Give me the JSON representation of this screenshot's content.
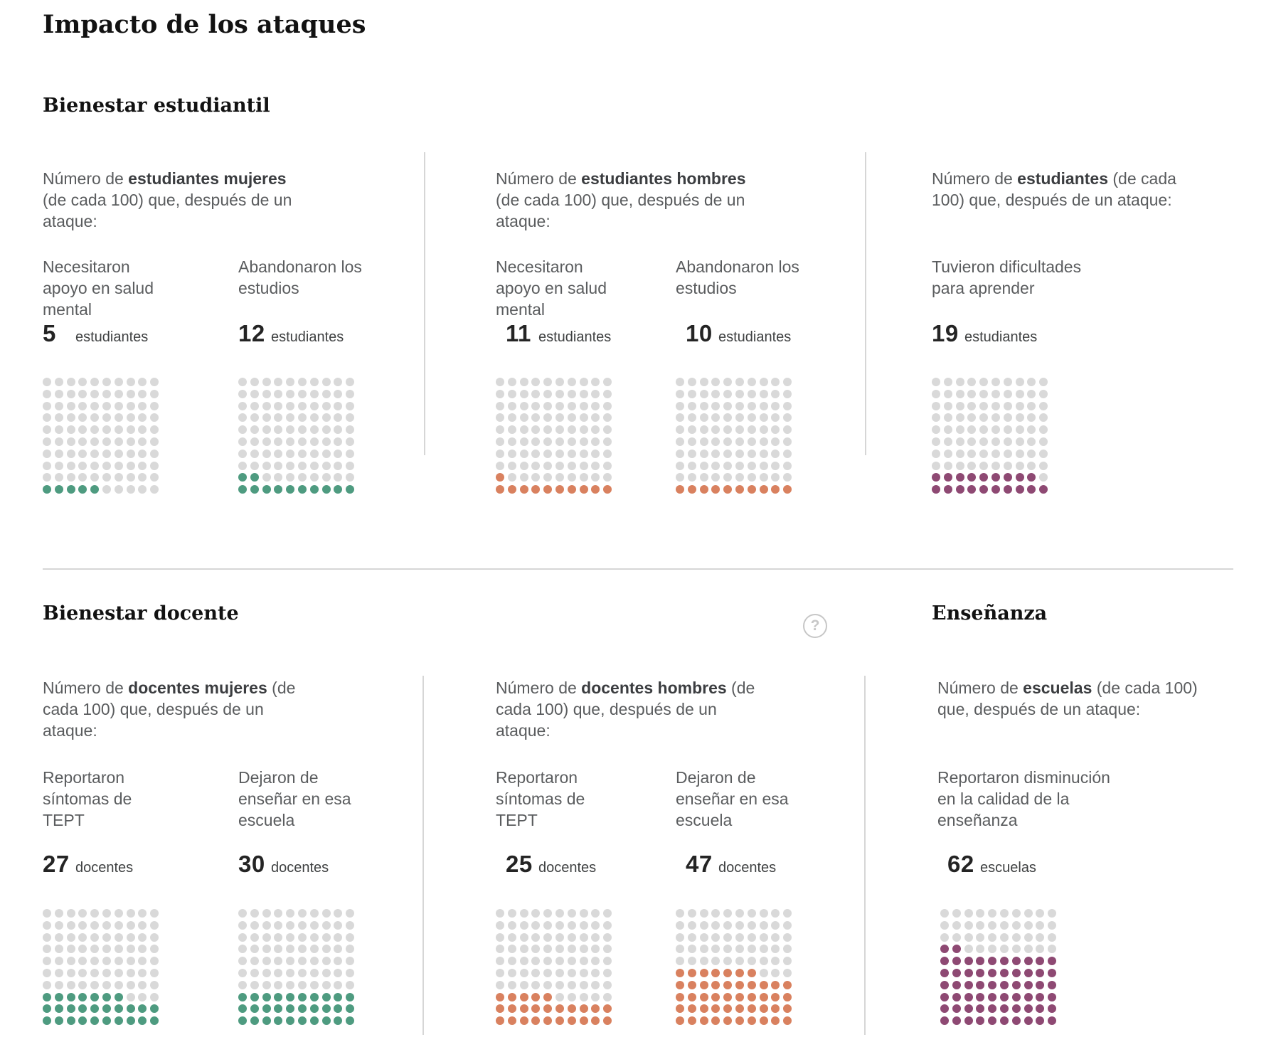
{
  "title": "Impacto de los ataques",
  "help": {
    "glyph": "?"
  },
  "colors": {
    "green": "#4E9B80",
    "orange": "#D9815F",
    "purple": "#8E4973",
    "empty_dot": "#D9D9D9",
    "divider": "#D6D6D6",
    "help_icon": "#C7C7C7"
  },
  "sections": [
    {
      "heading": "Bienestar estudiantil",
      "columns": [
        {
          "intro_prefix": "Número de ",
          "intro_bold": "estudiantes mujeres",
          "intro_suffix": " (de cada 100) que, después de un ataque:",
          "charts": [
            {
              "label": "Necesitaron apoyo en salud mental",
              "value": 5,
              "unit": "estudiantes",
              "color": "green"
            },
            {
              "label": "Abandonaron los estudios",
              "value": 12,
              "unit": "estudiantes",
              "color": "green"
            }
          ]
        },
        {
          "intro_prefix": "Número de ",
          "intro_bold": "estudiantes hombres",
          "intro_suffix": " (de cada 100) que, después de un ataque:",
          "charts": [
            {
              "label": "Necesitaron apoyo en salud mental",
              "value": 11,
              "unit": "estudiantes",
              "color": "orange"
            },
            {
              "label": "Abandonaron los estudios",
              "value": 10,
              "unit": "estudiantes",
              "color": "orange"
            }
          ]
        },
        {
          "intro_prefix": "Número de ",
          "intro_bold": "estudiantes",
          "intro_suffix": " (de cada 100) que, después de un ataque:",
          "charts": [
            {
              "label": "Tuvieron dificultades para aprender",
              "value": 19,
              "unit": "estudiantes",
              "color": "purple"
            }
          ]
        }
      ]
    },
    {
      "heading": "Bienestar docente",
      "heading_right": "Enseñanza",
      "columns": [
        {
          "intro_prefix": "Número de ",
          "intro_bold": "docentes mujeres",
          "intro_suffix": " (de cada 100) que, después de un ataque:",
          "charts": [
            {
              "label": "Reportaron síntomas de TEPT",
              "value": 27,
              "unit": "docentes",
              "color": "green"
            },
            {
              "label": "Dejaron de enseñar en esa escuela",
              "value": 30,
              "unit": "docentes",
              "color": "green"
            }
          ]
        },
        {
          "intro_prefix": "Número de ",
          "intro_bold": "docentes hombres",
          "intro_suffix": " (de cada 100) que, después de un ataque:",
          "charts": [
            {
              "label": "Reportaron síntomas de TEPT",
              "value": 25,
              "unit": "docentes",
              "color": "orange"
            },
            {
              "label": "Dejaron de enseñar en esa escuela",
              "value": 47,
              "unit": "docentes",
              "color": "orange"
            }
          ]
        },
        {
          "intro_prefix": "Número de ",
          "intro_bold": "escuelas",
          "intro_suffix": " (de cada 100) que, después de un ataque:",
          "charts": [
            {
              "label": "Reportaron disminución en la calidad de la enseñanza",
              "value": 62,
              "unit": "escuelas",
              "color": "purple"
            }
          ]
        }
      ]
    }
  ],
  "chart_data": [
    {
      "type": "waffle",
      "section": "Bienestar estudiantil",
      "series": "Estudiantes mujeres",
      "category": "Necesitaron apoyo en salud mental",
      "value": 5,
      "total": 100,
      "unit": "estudiantes",
      "color": "#4E9B80"
    },
    {
      "type": "waffle",
      "section": "Bienestar estudiantil",
      "series": "Estudiantes mujeres",
      "category": "Abandonaron los estudios",
      "value": 12,
      "total": 100,
      "unit": "estudiantes",
      "color": "#4E9B80"
    },
    {
      "type": "waffle",
      "section": "Bienestar estudiantil",
      "series": "Estudiantes hombres",
      "category": "Necesitaron apoyo en salud mental",
      "value": 11,
      "total": 100,
      "unit": "estudiantes",
      "color": "#D9815F"
    },
    {
      "type": "waffle",
      "section": "Bienestar estudiantil",
      "series": "Estudiantes hombres",
      "category": "Abandonaron los estudios",
      "value": 10,
      "total": 100,
      "unit": "estudiantes",
      "color": "#D9815F"
    },
    {
      "type": "waffle",
      "section": "Bienestar estudiantil",
      "series": "Estudiantes",
      "category": "Tuvieron dificultades para aprender",
      "value": 19,
      "total": 100,
      "unit": "estudiantes",
      "color": "#8E4973"
    },
    {
      "type": "waffle",
      "section": "Bienestar docente",
      "series": "Docentes mujeres",
      "category": "Reportaron síntomas de TEPT",
      "value": 27,
      "total": 100,
      "unit": "docentes",
      "color": "#4E9B80"
    },
    {
      "type": "waffle",
      "section": "Bienestar docente",
      "series": "Docentes mujeres",
      "category": "Dejaron de enseñar en esa escuela",
      "value": 30,
      "total": 100,
      "unit": "docentes",
      "color": "#4E9B80"
    },
    {
      "type": "waffle",
      "section": "Bienestar docente",
      "series": "Docentes hombres",
      "category": "Reportaron síntomas de TEPT",
      "value": 25,
      "total": 100,
      "unit": "docentes",
      "color": "#D9815F"
    },
    {
      "type": "waffle",
      "section": "Bienestar docente",
      "series": "Docentes hombres",
      "category": "Dejaron de enseñar en esa escuela",
      "value": 47,
      "total": 100,
      "unit": "docentes",
      "color": "#D9815F"
    },
    {
      "type": "waffle",
      "section": "Enseñanza",
      "series": "Escuelas",
      "category": "Reportaron disminución en la calidad de la enseñanza",
      "value": 62,
      "total": 100,
      "unit": "escuelas",
      "color": "#8E4973"
    }
  ]
}
